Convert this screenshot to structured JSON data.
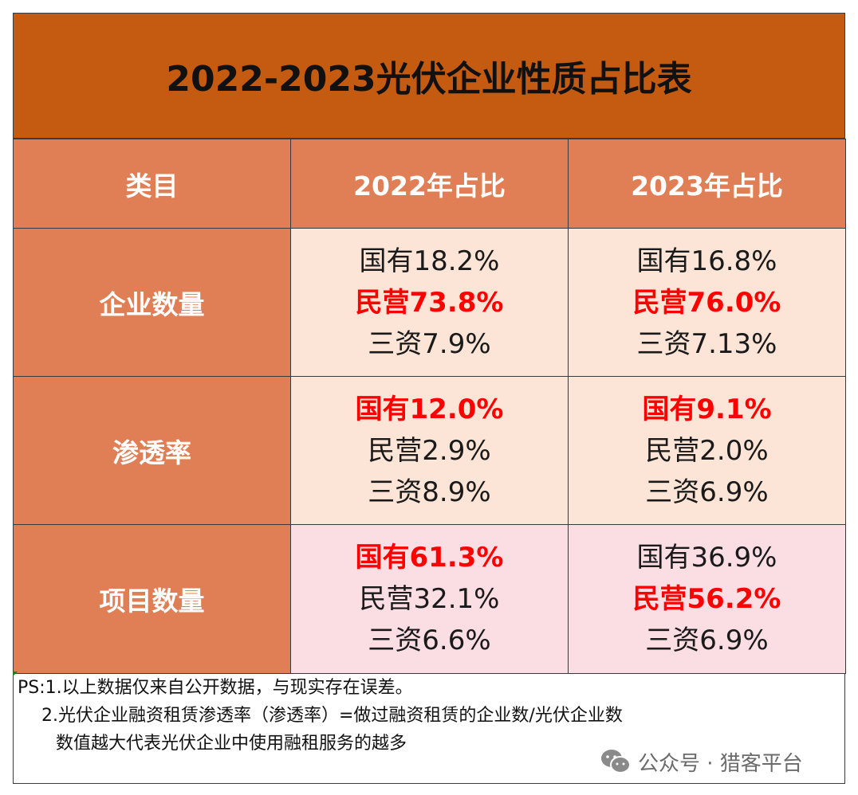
{
  "title": "2022-2023光伏企业性质占比表",
  "headers": [
    "类目",
    "2022年占比",
    "2023年占比"
  ],
  "rows": [
    {
      "category": "企业数量",
      "y2022": [
        {
          "text": "国有18.2%",
          "highlight": false
        },
        {
          "text": "民营73.8%",
          "highlight": true
        },
        {
          "text": "三资7.9%",
          "highlight": false
        }
      ],
      "y2023": [
        {
          "text": "国有16.8%",
          "highlight": false
        },
        {
          "text": "民营76.0%",
          "highlight": true
        },
        {
          "text": "三资7.13%",
          "highlight": false
        }
      ]
    },
    {
      "category": "渗透率",
      "y2022": [
        {
          "text": "国有12.0%",
          "highlight": true
        },
        {
          "text": "民营2.9%",
          "highlight": false
        },
        {
          "text": "三资8.9%",
          "highlight": false
        }
      ],
      "y2023": [
        {
          "text": "国有9.1%",
          "highlight": true
        },
        {
          "text": "民营2.0%",
          "highlight": false
        },
        {
          "text": "三资6.9%",
          "highlight": false
        }
      ]
    },
    {
      "category": "项目数量",
      "y2022": [
        {
          "text": "国有61.3%",
          "highlight": true
        },
        {
          "text": "民营32.1%",
          "highlight": false
        },
        {
          "text": "三资6.6%",
          "highlight": false
        }
      ],
      "y2023": [
        {
          "text": "国有36.9%",
          "highlight": false
        },
        {
          "text": "民营56.2%",
          "highlight": true
        },
        {
          "text": "三资6.9%",
          "highlight": false
        }
      ]
    }
  ],
  "notes": [
    "PS:1.以上数据仅来自公开数据，与现实存在误差。",
    "2.光伏企业融资租赁渗透率（渗透率）=做过融资租赁的企业数/光伏企业数",
    "数值越大代表光伏企业中使用融租服务的越多"
  ],
  "watermark": "公众号 · 猎客平台",
  "colors": {
    "title_bg": "#c55a11",
    "header_bg": "#e07f56",
    "cell_peach": "#fce4d6",
    "cell_pink": "#fbdde4",
    "highlight": "#ff0000"
  }
}
